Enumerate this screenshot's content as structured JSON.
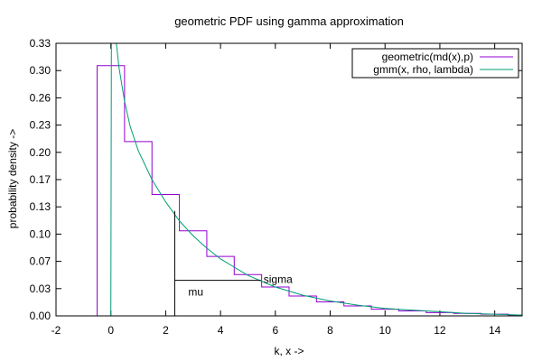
{
  "chart_data": {
    "type": "line",
    "title": "geometric PDF using gamma approximation",
    "xlabel": "k, x ->",
    "ylabel": "probability density ->",
    "xlim": [
      -2,
      15
    ],
    "ylim": [
      0,
      0.33
    ],
    "xticks": [
      -2,
      0,
      2,
      4,
      6,
      8,
      10,
      12,
      14
    ],
    "xtick_labels": [
      "-2",
      "0",
      "2",
      "4",
      "6",
      "8",
      "10",
      "12",
      "14"
    ],
    "yticks": [
      0,
      0.033,
      0.066,
      0.099,
      0.132,
      0.165,
      0.198,
      0.231,
      0.264,
      0.297,
      0.33
    ],
    "ytick_labels": [
      "0.00",
      "0.03",
      "0.07",
      "0.10",
      "0.13",
      "0.17",
      "0.20",
      "0.23",
      "0.26",
      "0.30",
      "0.33"
    ],
    "legend_position": "top-right",
    "grid": false,
    "series": [
      {
        "name": "geometric(md(x),p)",
        "style": "step",
        "color": "#9400d3",
        "k": [
          0,
          1,
          2,
          3,
          4,
          5,
          6,
          7,
          8,
          9,
          10,
          11,
          12,
          13,
          14,
          15
        ],
        "values": [
          0.303,
          0.211,
          0.147,
          0.103,
          0.072,
          0.05,
          0.035,
          0.024,
          0.017,
          0.012,
          0.008,
          0.006,
          0.004,
          0.003,
          0.002,
          0.001
        ]
      },
      {
        "name": "gmm(x, rho, lambda)",
        "style": "curve",
        "color": "#009e73",
        "x": [
          0.0,
          0.02,
          0.05,
          0.1,
          0.2,
          0.3,
          0.5,
          0.7,
          1.0,
          1.5,
          2.0,
          2.5,
          3.0,
          3.5,
          4.0,
          5.0,
          6.0,
          7.0,
          8.0,
          9.0,
          10.0,
          11.0,
          12.0,
          13.0,
          14.0,
          15.0
        ],
        "values": [
          0.0,
          0.33,
          0.33,
          0.33,
          0.33,
          0.3,
          0.26,
          0.23,
          0.2,
          0.165,
          0.138,
          0.115,
          0.097,
          0.082,
          0.069,
          0.049,
          0.035,
          0.025,
          0.018,
          0.013,
          0.009,
          0.007,
          0.005,
          0.003,
          0.002,
          0.001
        ]
      }
    ],
    "annotations": [
      {
        "label": "mu",
        "x": 2.33,
        "y": 0.043
      },
      {
        "label": "sigma",
        "y": 0.043,
        "x_from": 2.33,
        "x_to": 5.47
      }
    ],
    "mean_marker_x": 2.33,
    "mean_marker_top": 0.127,
    "sigma_line_y": 0.043
  }
}
